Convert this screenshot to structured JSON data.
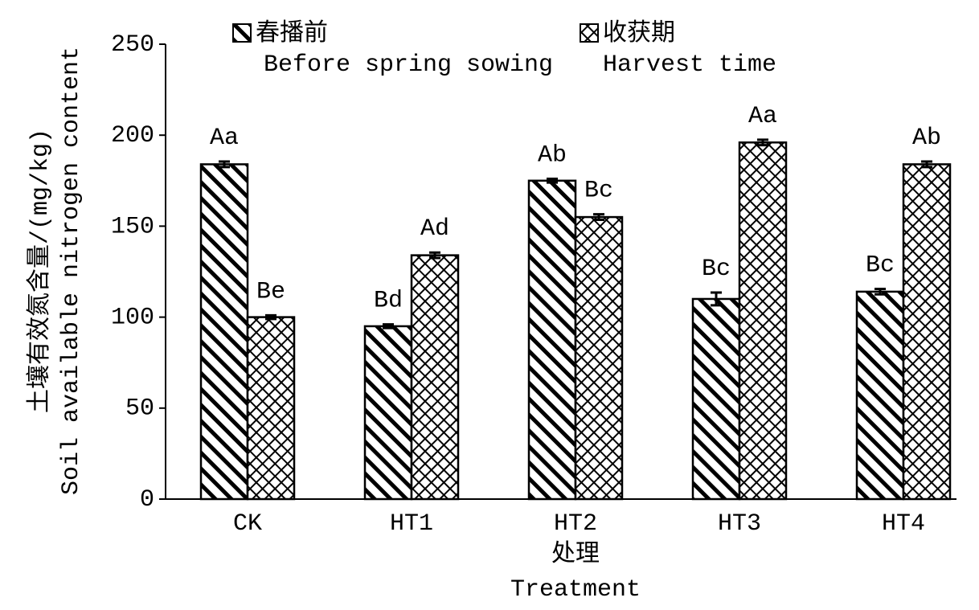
{
  "chart_data": {
    "type": "bar",
    "y_label": "土壤有效氮含量/(mg/kg)",
    "y_label_en": "Soil available nitrogen content",
    "x_label": "处理",
    "x_label_en": "Treatment",
    "categories": [
      "CK",
      "HT1",
      "HT2",
      "HT3",
      "HT4"
    ],
    "series": [
      {
        "name": "春播前",
        "name_en": "Before spring sowing",
        "color": "#000000",
        "pattern": "diagonal",
        "values": [
          184,
          95,
          175,
          110,
          114
        ],
        "errors": [
          1.5,
          1,
          1,
          3.5,
          1.5
        ],
        "labels": [
          "Aa",
          "Bd",
          "Ab",
          "Bc",
          "Bc"
        ]
      },
      {
        "name": "收获期",
        "name_en": "Harvest time",
        "color": "#000000",
        "pattern": "crosshatch",
        "values": [
          100,
          134,
          155,
          196,
          184
        ],
        "errors": [
          1,
          1.5,
          1.5,
          1.5,
          1.5
        ],
        "labels": [
          "Be",
          "Ad",
          "Bc",
          "Aa",
          "Ab"
        ]
      }
    ],
    "ylim": [
      0,
      250
    ],
    "yticks": [
      0,
      50,
      100,
      150,
      200,
      250
    ]
  }
}
